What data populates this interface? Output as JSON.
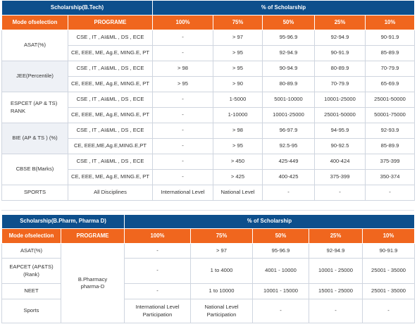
{
  "table1": {
    "title": "Scholarship(B.Tech)",
    "pct_title": "% of Scholarship",
    "col_headers": [
      "Mode ofselection",
      "PROGRAME",
      "100%",
      "75%",
      "50%",
      "25%",
      "10%"
    ],
    "groups": [
      {
        "mode": "ASAT(%)",
        "rows": [
          [
            "CSE , IT , AI&ML , DS , ECE",
            "-",
            "> 97",
            "95-96.9",
            "92-94.9",
            "90-91.9"
          ],
          [
            "CE, EEE, ME, Ag.E, MING.E, PT",
            "-",
            "> 95",
            "92-94.9",
            "90-91.9",
            "85-89.9"
          ]
        ]
      },
      {
        "mode": "JEE(Percentile)",
        "rows": [
          [
            "CSE , IT , AI&ML , DS , ECE",
            "> 98",
            "> 95",
            "90-94.9",
            "80-89.9",
            "70-79.9"
          ],
          [
            "CE, EEE, ME, Ag.E, MING.E, PT",
            "> 95",
            "> 90",
            "80-89.9",
            "70-79.9",
            "65-69.9"
          ]
        ]
      },
      {
        "mode": "ESPCET (AP & TS) RANK",
        "rows": [
          [
            "CSE , IT , AI&ML , DS , ECE",
            "-",
            "1-5000",
            "5001-10000",
            "10001-25000",
            "25001-50000"
          ],
          [
            "CE, EEE, ME, Ag.E, MING.E, PT",
            "-",
            "1-10000",
            "10001-25000",
            "25001-50000",
            "50001-75000"
          ]
        ]
      },
      {
        "mode": "BIE (AP & TS ) (%)",
        "rows": [
          [
            "CSE , IT , AI&ML , DS , ECE",
            "-",
            "> 98",
            "96-97.9",
            "94-95.9",
            "92-93.9"
          ],
          [
            "CE, EEE,ME,Ag.E,MING.E,PT",
            "-",
            "> 95",
            "92.5-95",
            "90-92.5",
            "85-89.9"
          ]
        ]
      },
      {
        "mode": "CBSE B(Marks)",
        "rows": [
          [
            "CSE , IT , AI&ML , DS , ECE",
            "-",
            "> 450",
            "425-449",
            "400-424",
            "375-399"
          ],
          [
            "CE, EEE, ME, Ag.E, MING.E, PT",
            "-",
            "> 425",
            "400-425",
            "375-399",
            "350-374"
          ]
        ]
      }
    ],
    "sports": [
      "SPORTS",
      "All Disciplines",
      "International Level",
      "National Level",
      "-",
      "-",
      "-"
    ]
  },
  "table2": {
    "title": "Scholarship(B.Pharm, Pharma D)",
    "pct_title": "% of Scholarship",
    "col_headers": [
      "Mode ofselection",
      "PROGRAME",
      "100%",
      "75%",
      "50%",
      "25%",
      "10%"
    ],
    "programme": "B.Pharmacy pharma-D",
    "rows": [
      [
        "ASAT(%)",
        "-",
        "> 97",
        "95-96.9",
        "92-94.9",
        "90-91.9"
      ],
      [
        "EAPCET (AP&TS) (Rank)",
        "-",
        "1 to 4000",
        "4001 - 10000",
        "10001 - 25000",
        "25001 - 35000"
      ],
      [
        "NEET",
        "-",
        "1 to 10000",
        "10001 - 15000",
        "15001 - 25000",
        "25001 - 35000"
      ],
      [
        "Sports",
        "International Level Participation",
        "National Level Participation",
        "-",
        "-",
        "-"
      ]
    ]
  }
}
